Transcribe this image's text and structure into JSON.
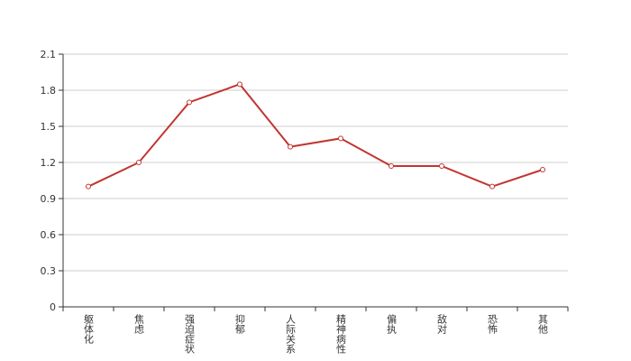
{
  "chart_data": {
    "type": "line",
    "categories": [
      "躯体化",
      "焦虑",
      "强迫症状",
      "抑郁",
      "人际关系",
      "精神病性",
      "偏执",
      "敌对",
      "恐怖",
      "其他"
    ],
    "series": [
      {
        "color": "#c23531",
        "values": [
          1.0,
          1.2,
          1.7,
          1.85,
          1.33,
          1.4,
          1.17,
          1.17,
          1.0,
          1.14
        ]
      }
    ],
    "ylim": [
      0,
      2.1
    ],
    "yticks": [
      0,
      0.3,
      0.6,
      0.9,
      1.2,
      1.5,
      1.8,
      2.1
    ],
    "grid": true
  }
}
